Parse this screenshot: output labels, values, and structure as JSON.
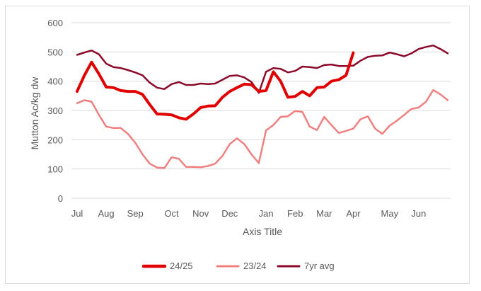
{
  "chart_data": {
    "type": "line",
    "xlabel": "Axis Title",
    "ylabel": "Mutton Ac/kg dw",
    "ylim": [
      0,
      600
    ],
    "yticks": [
      0,
      100,
      200,
      300,
      400,
      500,
      600
    ],
    "month_labels": [
      "Jul",
      "Aug",
      "Sep",
      "Oct",
      "Nov",
      "Dec",
      "Jan",
      "Feb",
      "Mar",
      "Apr",
      "May",
      "Jun"
    ],
    "month_label_weeks": [
      0,
      4,
      8,
      13,
      17,
      21,
      26,
      30,
      34,
      38,
      43,
      47
    ],
    "week_count": 51,
    "grid": "horizontal",
    "legend_position": "bottom",
    "series": [
      {
        "name": "24/25",
        "color": "#e00000",
        "width": 4,
        "values": [
          365,
          420,
          465,
          425,
          380,
          378,
          368,
          365,
          365,
          355,
          320,
          288,
          287,
          285,
          275,
          270,
          288,
          310,
          315,
          316,
          345,
          365,
          378,
          390,
          388,
          365,
          368,
          432,
          400,
          345,
          348,
          365,
          350,
          378,
          380,
          400,
          405,
          420,
          497
        ]
      },
      {
        "name": "23/24",
        "color": "#f08080",
        "width": 2.5,
        "values": [
          325,
          335,
          330,
          285,
          245,
          240,
          240,
          220,
          190,
          150,
          118,
          105,
          103,
          140,
          135,
          107,
          107,
          106,
          110,
          118,
          145,
          185,
          205,
          185,
          150,
          120,
          232,
          250,
          278,
          280,
          298,
          295,
          245,
          233,
          278,
          250,
          223,
          230,
          238,
          270,
          280,
          238,
          220,
          248,
          265,
          285,
          305,
          310,
          330,
          370,
          355,
          335
        ]
      },
      {
        "name": "7yr avg",
        "color": "#8b0a2a",
        "width": 2.5,
        "values": [
          490,
          498,
          505,
          492,
          460,
          448,
          445,
          438,
          430,
          420,
          395,
          378,
          373,
          390,
          397,
          387,
          387,
          392,
          390,
          392,
          405,
          418,
          420,
          413,
          397,
          360,
          432,
          445,
          442,
          430,
          435,
          450,
          448,
          445,
          455,
          457,
          452,
          452,
          453,
          470,
          483,
          487,
          488,
          498,
          492,
          485,
          495,
          510,
          517,
          522,
          510,
          495
        ]
      }
    ]
  }
}
